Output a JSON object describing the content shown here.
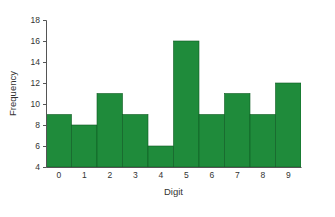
{
  "chart_data": {
    "type": "bar",
    "x_label": "Digit",
    "y_label": "Frequency",
    "categories": [
      "0",
      "1",
      "2",
      "3",
      "4",
      "5",
      "6",
      "7",
      "8",
      "9"
    ],
    "values": [
      9,
      8,
      11,
      9,
      6,
      16,
      9,
      11,
      9,
      12
    ],
    "color": "#1f8b3b",
    "ylim": [
      4,
      18
    ],
    "yticks": [
      4,
      6,
      8,
      10,
      12,
      14,
      16,
      18
    ],
    "grid": false
  }
}
